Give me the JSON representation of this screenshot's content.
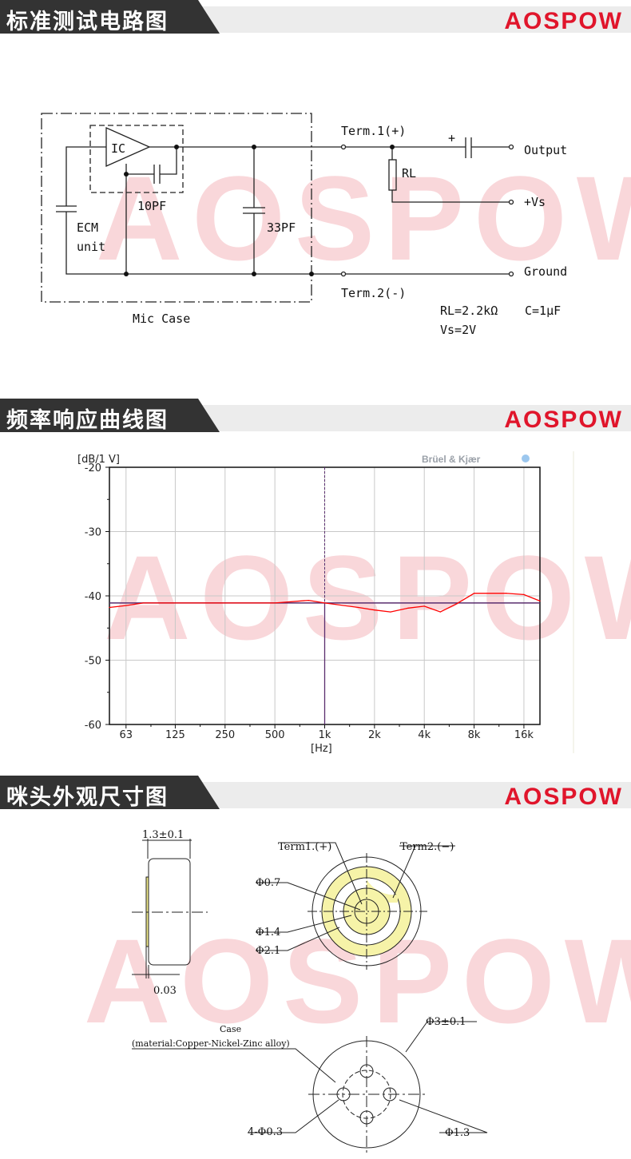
{
  "brand": {
    "logo": "AOSPOW",
    "watermark": "AOSPOW",
    "color": "#e0152b"
  },
  "sections": [
    {
      "title": "标准测试电路图"
    },
    {
      "title": "频率响应曲线图"
    },
    {
      "title": "咪头外观尺寸图"
    }
  ],
  "circuit": {
    "ic": "IC",
    "cap_10": "10PF",
    "cap_33": "33PF",
    "ecm_1": "ECM",
    "ecm_2": "unit",
    "mic_case": "Mic Case",
    "term1": "Term.1(+)",
    "term2": "Term.2(-)",
    "plus": "+",
    "rl": "RL",
    "output": "Output",
    "vs": "+Vs",
    "ground": "Ground",
    "note_rl": "RL=2.2kΩ",
    "note_c": "C=1μF",
    "note_vs": "Vs=2V"
  },
  "chart_data": {
    "type": "line",
    "ylabel": "[dB/1 V]",
    "xlabel": "[Hz]",
    "brand": "Brüel & Kjær",
    "x_scale": "log",
    "xlim": [
      50,
      20000
    ],
    "ylim": [
      -60,
      -20
    ],
    "x_ticks": [
      {
        "v": 63,
        "label": "63"
      },
      {
        "v": 125,
        "label": "125"
      },
      {
        "v": 250,
        "label": "250"
      },
      {
        "v": 500,
        "label": "500"
      },
      {
        "v": 1000,
        "label": "1k"
      },
      {
        "v": 2000,
        "label": "2k"
      },
      {
        "v": 4000,
        "label": "4k"
      },
      {
        "v": 8000,
        "label": "8k"
      },
      {
        "v": 16000,
        "label": "16k"
      }
    ],
    "y_ticks": [
      {
        "v": -20,
        "label": "-20"
      },
      {
        "v": -30,
        "label": "-30"
      },
      {
        "v": -40,
        "label": "-40"
      },
      {
        "v": -50,
        "label": "-50"
      },
      {
        "v": -60,
        "label": "-60"
      }
    ],
    "grid": true,
    "series": [
      {
        "color": "#ff0000",
        "x": [
          50,
          63,
          80,
          125,
          250,
          500,
          800,
          1000,
          1600,
          2000,
          2500,
          3200,
          4000,
          5000,
          6300,
          8000,
          12500,
          16000,
          20000
        ],
        "y": [
          -41.8,
          -41.5,
          -41.1,
          -41.1,
          -41.1,
          -41.1,
          -40.7,
          -41.1,
          -41.8,
          -42.2,
          -42.5,
          -41.9,
          -41.6,
          -42.5,
          -41.2,
          -39.6,
          -39.6,
          -39.8,
          -40.8
        ]
      }
    ],
    "cursor": {
      "x": 1000,
      "y": -41.1,
      "color": "#5a2d6e"
    }
  },
  "dimensions": {
    "thickness": "1.3±0.1",
    "plate": "0.03",
    "term1": "Term1.(+)",
    "term2": "Term2.(−)",
    "d07": "Φ0.7",
    "d14": "Φ1.4",
    "d21": "Φ2.1",
    "case": "Case",
    "material": "(material:Copper-Nickel-Zinc alloy)",
    "d3": "Φ3±0.1",
    "holes": "4-Φ0.3",
    "d13": "Φ1.3"
  }
}
